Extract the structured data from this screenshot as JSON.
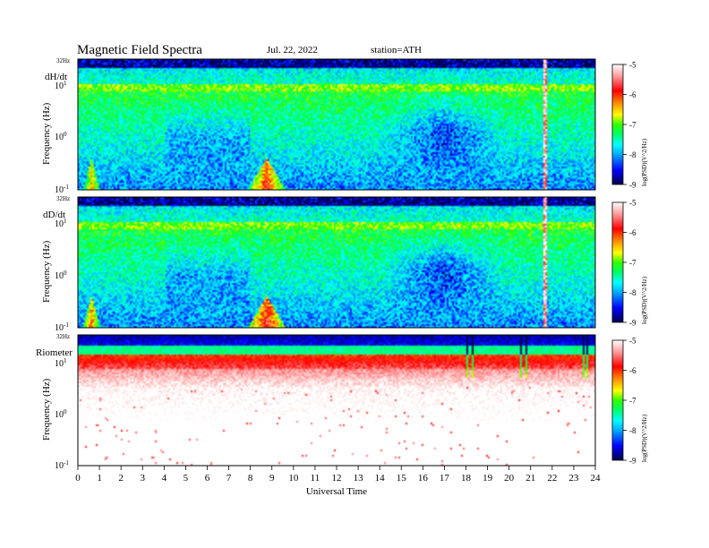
{
  "header": {
    "title": "Magnetic  Field  Spectra",
    "date": "Jul.  22,  2022",
    "station": "station=ATH"
  },
  "chart_data": [
    {
      "type": "heatmap",
      "panel_label": "dH/dt",
      "ylabel": "Frequency  (Hz)",
      "y_ticks": [
        {
          "base": "10",
          "exp": "-1"
        },
        {
          "base": "10",
          "exp": "0"
        },
        {
          "base": "10",
          "exp": "1"
        }
      ],
      "y_top_label": "32Hz",
      "yscale": "log",
      "ylim": [
        0.1,
        32
      ],
      "xlim": [
        0,
        24
      ],
      "colorbar": {
        "ticks": [
          "-5",
          "-6",
          "-7",
          "-8",
          "-9"
        ],
        "label": "log(PSD)(V^2/Hz)",
        "range": [
          -9,
          -5
        ]
      },
      "features": {
        "low_freq_bursts": [
          {
            "start": 0.2,
            "end": 1.0,
            "peak": -6.2
          },
          {
            "start": 7.9,
            "end": 9.6,
            "peak": -5.8
          }
        ],
        "broadband_spikes": [
          21.7
        ],
        "quiet_interval": {
          "start": 14,
          "end": 20,
          "level": -8.2
        }
      }
    },
    {
      "type": "heatmap",
      "panel_label": "dD/dt",
      "ylabel": "Frequency  (Hz)",
      "y_ticks": [
        {
          "base": "10",
          "exp": "-1"
        },
        {
          "base": "10",
          "exp": "0"
        },
        {
          "base": "10",
          "exp": "1"
        }
      ],
      "y_top_label": "32Hz",
      "yscale": "log",
      "ylim": [
        0.1,
        32
      ],
      "xlim": [
        0,
        24
      ],
      "colorbar": {
        "ticks": [
          "-5",
          "-6",
          "-7",
          "-8",
          "-9"
        ],
        "label": "log(PSD)(V^2/Hz)",
        "range": [
          -9,
          -5
        ]
      },
      "features": {
        "low_freq_bursts": [
          {
            "start": 0.2,
            "end": 1.0,
            "peak": -6.0
          },
          {
            "start": 7.9,
            "end": 9.6,
            "peak": -5.6
          }
        ],
        "broadband_spikes": [
          21.7
        ],
        "quiet_interval": {
          "start": 14,
          "end": 20,
          "level": -8.2
        }
      }
    },
    {
      "type": "heatmap",
      "panel_label": "Riometer",
      "ylabel": "Frequency  (Hz)",
      "y_ticks": [
        {
          "base": "10",
          "exp": "-1"
        },
        {
          "base": "10",
          "exp": "0"
        },
        {
          "base": "10",
          "exp": "1"
        }
      ],
      "y_top_label": "32Hz",
      "yscale": "log",
      "ylim": [
        0.1,
        32
      ],
      "xlim": [
        0,
        24
      ],
      "colorbar": {
        "ticks": [
          "-5",
          "-6",
          "-7",
          "-8",
          "-9"
        ],
        "label": "log(PSD)(V^2/Hz)",
        "range": [
          -9,
          -5
        ]
      },
      "features": {
        "high_power_band_hz": [
          5,
          14
        ],
        "broadband_spikes": [
          18.1,
          18.3,
          20.6,
          20.8,
          23.5,
          23.7
        ]
      }
    }
  ],
  "x_axis": {
    "label": "Universal Time",
    "ticks": [
      "0",
      "1",
      "2",
      "3",
      "4",
      "5",
      "6",
      "7",
      "8",
      "9",
      "10",
      "11",
      "12",
      "13",
      "14",
      "15",
      "16",
      "17",
      "18",
      "19",
      "20",
      "21",
      "22",
      "23",
      "24"
    ]
  },
  "colors": {
    "ramp": [
      "#00004a",
      "#0000ff",
      "#00aaff",
      "#00ffff",
      "#00ff66",
      "#33ff00",
      "#ffff00",
      "#ff8800",
      "#ff0000",
      "#ff9999",
      "#ffffff"
    ]
  }
}
